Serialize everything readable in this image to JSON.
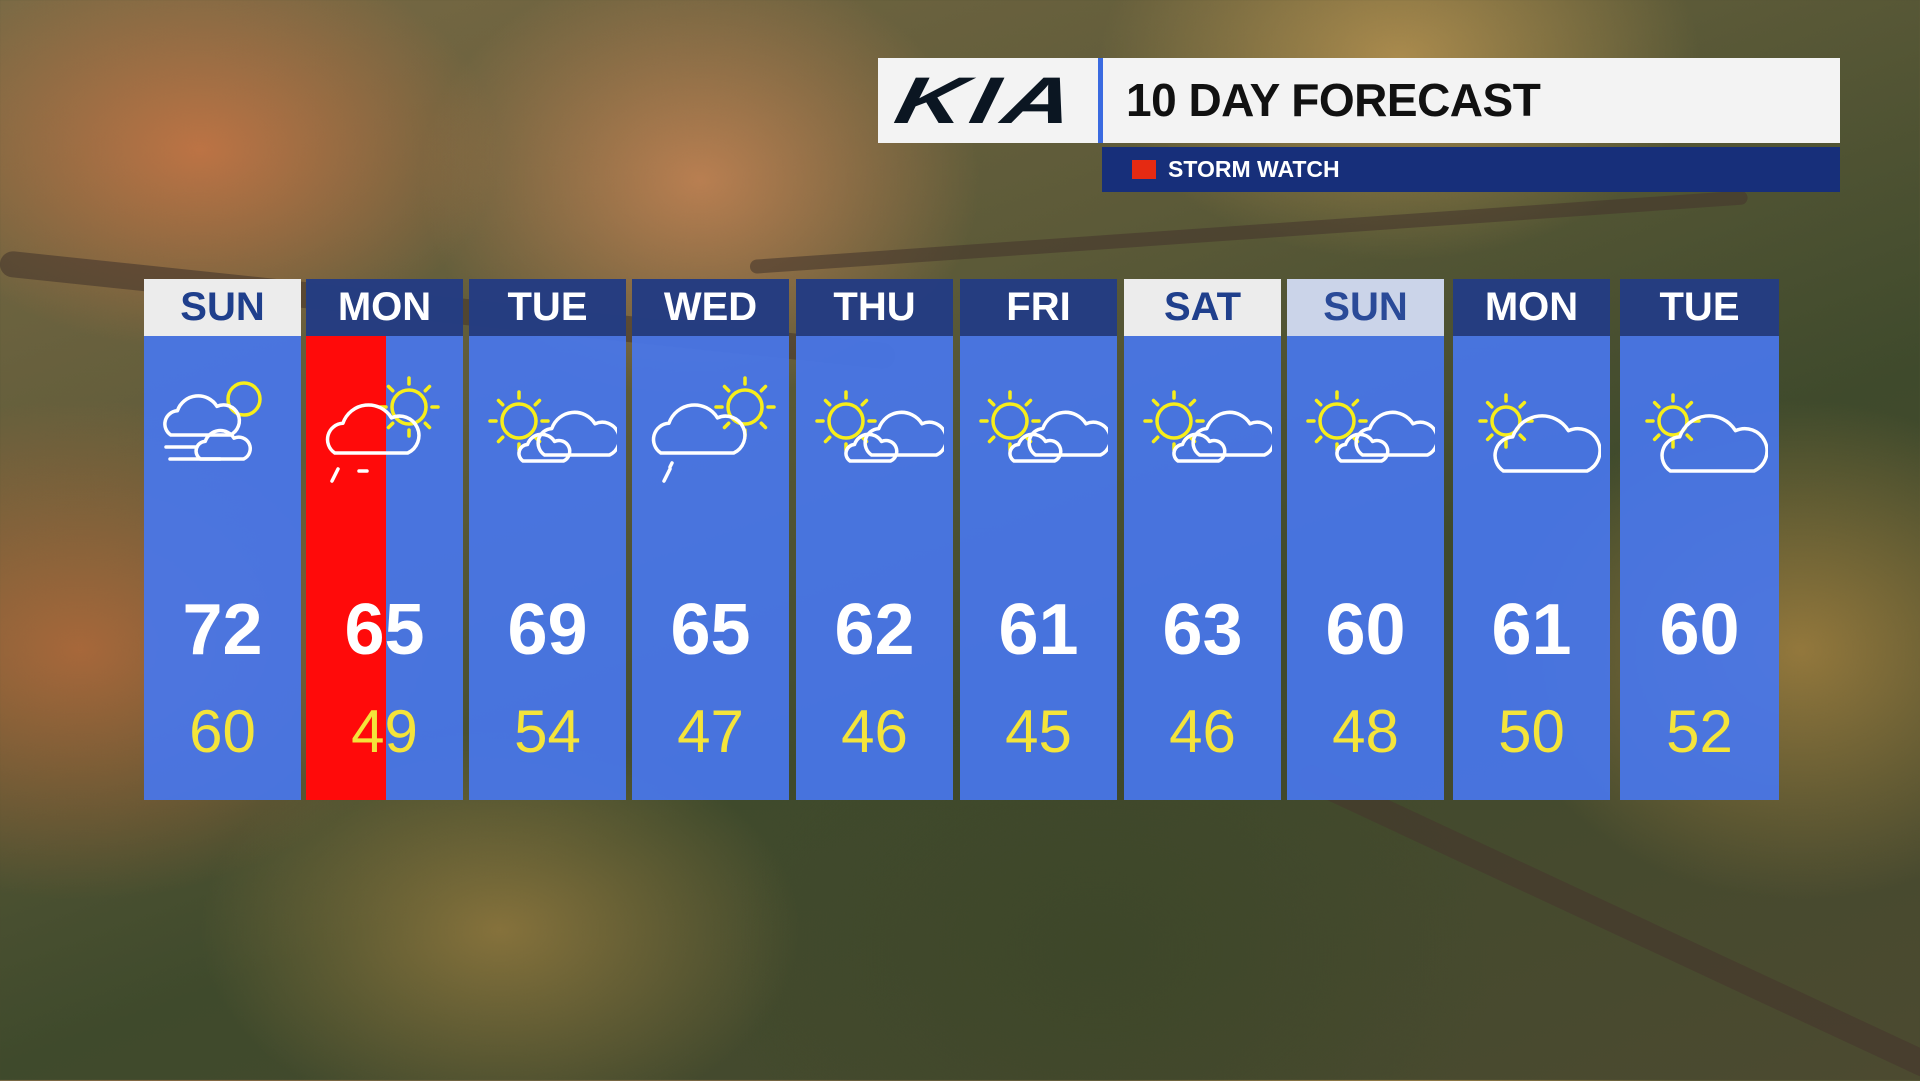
{
  "header": {
    "brand": "KIA",
    "title": "10 DAY FORECAST"
  },
  "alert": {
    "label": "STORM WATCH",
    "color": "#e52a12"
  },
  "colors": {
    "tile": "#4876eb",
    "day_header": "#243a7a",
    "low_temp": "#f4e43a",
    "storm_highlight": "#ff0a0a"
  },
  "days": [
    {
      "name": "SUN",
      "high": "72",
      "low": "60",
      "icon": "partly-cloudy-windy",
      "header_style": "highlight"
    },
    {
      "name": "MON",
      "high": "65",
      "low": "49",
      "icon": "partly-cloudy-showers",
      "storm": true
    },
    {
      "name": "TUE",
      "high": "69",
      "low": "54",
      "icon": "partly-cloudy"
    },
    {
      "name": "WED",
      "high": "65",
      "low": "47",
      "icon": "partly-cloudy-shower"
    },
    {
      "name": "THU",
      "high": "62",
      "low": "46",
      "icon": "partly-cloudy"
    },
    {
      "name": "FRI",
      "high": "61",
      "low": "45",
      "icon": "partly-cloudy"
    },
    {
      "name": "SAT",
      "high": "63",
      "low": "46",
      "icon": "partly-cloudy",
      "header_style": "highlight"
    },
    {
      "name": "SUN",
      "high": "60",
      "low": "48",
      "icon": "partly-cloudy",
      "header_style": "highlight-faded"
    },
    {
      "name": "MON",
      "high": "61",
      "low": "50",
      "icon": "mostly-cloudy"
    },
    {
      "name": "TUE",
      "high": "60",
      "low": "52",
      "icon": "mostly-cloudy"
    }
  ]
}
